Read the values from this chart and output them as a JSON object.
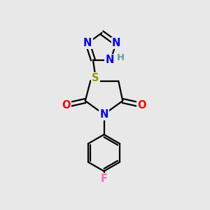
{
  "background_color": "#e8e8e8",
  "bond_color": "#000000",
  "bond_width": 1.6,
  "atom_colors": {
    "N": "#0000ff",
    "O": "#ff0000",
    "S": "#999900",
    "F": "#ff69b4",
    "H": "#5f9ea0",
    "C": "#000000"
  },
  "font_size": 10.5,
  "fig_size": [
    3.0,
    3.0
  ],
  "dpi": 100
}
